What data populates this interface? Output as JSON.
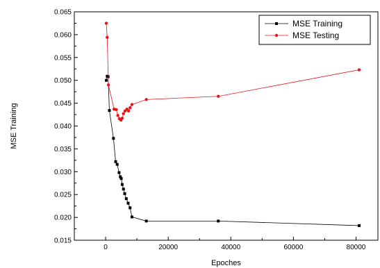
{
  "chart_data": {
    "type": "line",
    "xlabel": "Epoches",
    "ylabel": "MSE Training",
    "xlim": [
      -10000,
      87000
    ],
    "ylim": [
      0.015,
      0.065
    ],
    "xticks": [
      0,
      20000,
      40000,
      60000,
      80000
    ],
    "xtick_labels": [
      "0",
      "20000",
      "40000",
      "60000",
      "80000"
    ],
    "yticks": [
      0.015,
      0.02,
      0.025,
      0.03,
      0.035,
      0.04,
      0.045,
      0.05,
      0.055,
      0.06,
      0.065
    ],
    "ytick_labels": [
      "0.015",
      "0.020",
      "0.025",
      "0.030",
      "0.035",
      "0.040",
      "0.045",
      "0.050",
      "0.055",
      "0.060",
      "0.065"
    ],
    "grid": false,
    "legend_position": "top-right",
    "series": [
      {
        "name": "MSE Training",
        "color": "#000000",
        "marker": "square",
        "x": [
          200,
          500,
          800,
          1200,
          2500,
          3200,
          3700,
          4300,
          4700,
          5000,
          5300,
          5700,
          6100,
          6600,
          7200,
          7800,
          8400,
          13000,
          36000,
          81000
        ],
        "y": [
          0.05,
          0.0509,
          0.0508,
          0.0434,
          0.0373,
          0.0322,
          0.0316,
          0.0298,
          0.0289,
          0.0285,
          0.0272,
          0.0262,
          0.0252,
          0.0241,
          0.0231,
          0.0221,
          0.0201,
          0.0192,
          0.0192,
          0.0182
        ]
      },
      {
        "name": "MSE Testing",
        "color": "#e8141c",
        "marker": "circle",
        "x": [
          200,
          500,
          900,
          2700,
          3400,
          3900,
          4400,
          4900,
          5300,
          5700,
          6200,
          6800,
          7300,
          7800,
          8400,
          13000,
          36000,
          81000
        ],
        "y": [
          0.0625,
          0.0594,
          0.049,
          0.0437,
          0.0436,
          0.0423,
          0.0416,
          0.0413,
          0.0417,
          0.0427,
          0.0433,
          0.0437,
          0.0433,
          0.044,
          0.0447,
          0.0458,
          0.0465,
          0.0523
        ]
      }
    ]
  }
}
